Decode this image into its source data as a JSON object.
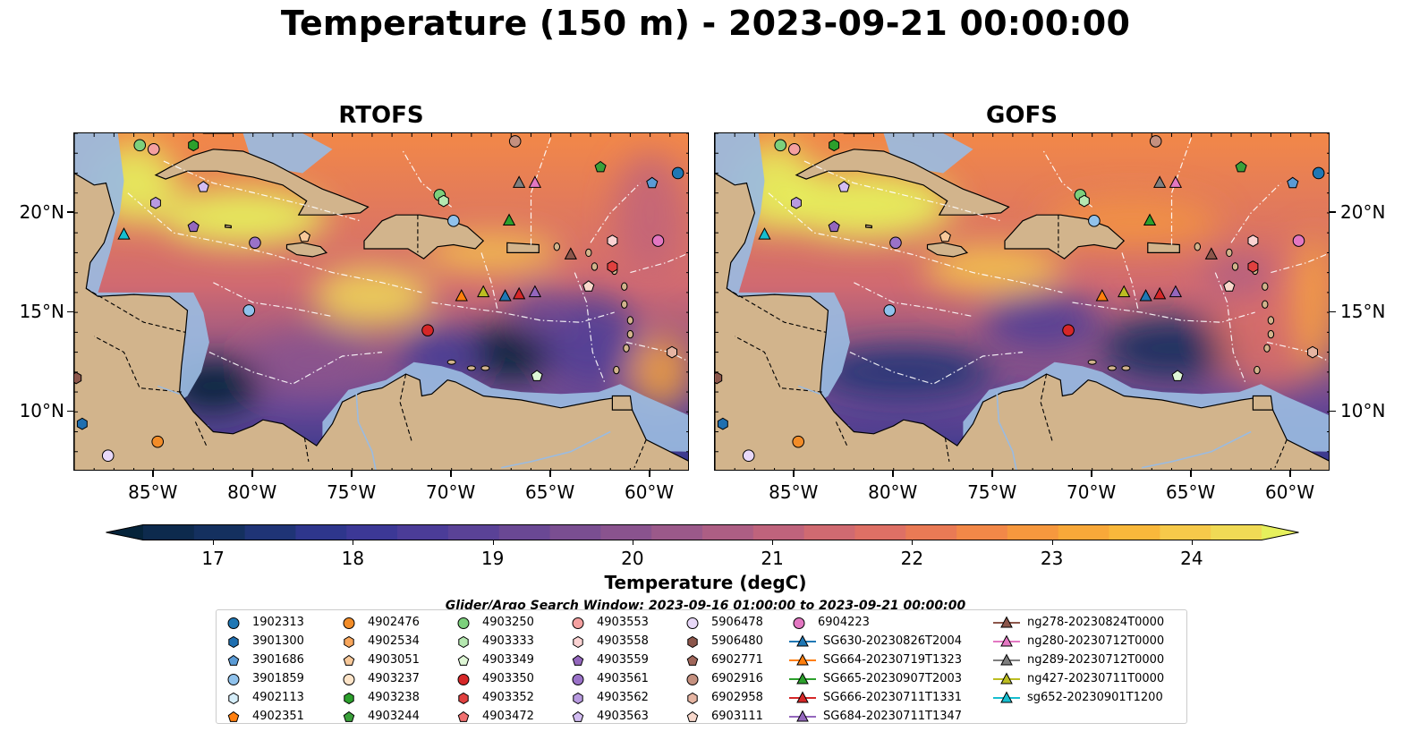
{
  "title": "Temperature (150 m) - 2023-09-21 00:00:00",
  "panels": [
    {
      "title": "RTOFS"
    },
    {
      "title": "GOFS"
    }
  ],
  "axes": {
    "lon_ticks": [
      "85°W",
      "80°W",
      "75°W",
      "70°W",
      "65°W",
      "60°W"
    ],
    "lat_ticks": [
      "20°N",
      "15°N",
      "10°N"
    ],
    "lon_range": [
      -89,
      -58
    ],
    "lat_range": [
      7,
      24
    ],
    "lon_values": [
      -85,
      -80,
      -75,
      -70,
      -65,
      -60
    ],
    "lat_values": [
      20,
      15,
      10
    ]
  },
  "colorbar": {
    "label": "Temperature (degC)",
    "ticks": [
      "17",
      "18",
      "19",
      "20",
      "21",
      "22",
      "23",
      "24"
    ],
    "range": [
      16.5,
      24.5
    ],
    "extend": "both",
    "colors": [
      "#05233a",
      "#0d2a4d",
      "#14305f",
      "#1f3476",
      "#2e368c",
      "#3c3896",
      "#4b3c98",
      "#5a4297",
      "#6a4894",
      "#7a4e91",
      "#8a538e",
      "#9b598a",
      "#ad5e84",
      "#bf637c",
      "#d06a71",
      "#de7065",
      "#e97a55",
      "#f28848",
      "#f6983e",
      "#f8a839",
      "#f9b83b",
      "#f6c94a",
      "#f0da55",
      "#e6f05c"
    ]
  },
  "search_window": "Glider/Argo Search Window: 2023-09-16 01:00:00 to 2023-09-21 00:00:00",
  "legend": {
    "columns": [
      [
        {
          "label": "1902313",
          "marker": "circle",
          "color": "#1f77b4"
        },
        {
          "label": "3901300",
          "marker": "hexagon",
          "color": "#1f6fb0"
        },
        {
          "label": "3901686",
          "marker": "pentagon",
          "color": "#5b9bd5"
        },
        {
          "label": "3901859",
          "marker": "circle",
          "color": "#90c2ec"
        },
        {
          "label": "4902113",
          "marker": "hexagon",
          "color": "#d6eefa"
        },
        {
          "label": "4902351",
          "marker": "pentagon",
          "color": "#ff7f0e"
        }
      ],
      [
        {
          "label": "4902476",
          "marker": "circle",
          "color": "#f28c28"
        },
        {
          "label": "4902534",
          "marker": "hexagon",
          "color": "#f8a65c"
        },
        {
          "label": "4903051",
          "marker": "pentagon",
          "color": "#f7c899"
        },
        {
          "label": "4903237",
          "marker": "circle",
          "color": "#fde4c8"
        },
        {
          "label": "4903238",
          "marker": "hexagon",
          "color": "#2ca02c"
        },
        {
          "label": "4903244",
          "marker": "pentagon",
          "color": "#3aa03a"
        }
      ],
      [
        {
          "label": "4903250",
          "marker": "circle",
          "color": "#7cd07c"
        },
        {
          "label": "4903333",
          "marker": "hexagon",
          "color": "#b5e8b0"
        },
        {
          "label": "4903349",
          "marker": "pentagon",
          "color": "#dff7d6"
        },
        {
          "label": "4903350",
          "marker": "circle",
          "color": "#d62728"
        },
        {
          "label": "4903352",
          "marker": "hexagon",
          "color": "#e0403f"
        },
        {
          "label": "4903472",
          "marker": "pentagon",
          "color": "#f07070"
        }
      ],
      [
        {
          "label": "4903553",
          "marker": "circle",
          "color": "#f4a0a0"
        },
        {
          "label": "4903558",
          "marker": "hexagon",
          "color": "#fbd3d3"
        },
        {
          "label": "4903559",
          "marker": "pentagon",
          "color": "#9467bd"
        },
        {
          "label": "4903561",
          "marker": "circle",
          "color": "#9a72c8"
        },
        {
          "label": "4903562",
          "marker": "hexagon",
          "color": "#b89ae0"
        },
        {
          "label": "4903563",
          "marker": "pentagon",
          "color": "#d3bdf2"
        }
      ],
      [
        {
          "label": "5906478",
          "marker": "circle",
          "color": "#e8d8f8"
        },
        {
          "label": "5906480",
          "marker": "hexagon",
          "color": "#8c564b"
        },
        {
          "label": "6902771",
          "marker": "pentagon",
          "color": "#a0665a"
        },
        {
          "label": "6902916",
          "marker": "circle",
          "color": "#c4907f"
        },
        {
          "label": "6902958",
          "marker": "hexagon",
          "color": "#e6b5a3"
        },
        {
          "label": "6903111",
          "marker": "pentagon",
          "color": "#f8d8cc"
        }
      ],
      [
        {
          "label": "6904223",
          "marker": "circle",
          "color": "#e377c2"
        },
        {
          "label": "SG630-20230826T2004",
          "marker": "triangle-line",
          "color": "#1f77b4"
        },
        {
          "label": "SG664-20230719T1323",
          "marker": "triangle-line",
          "color": "#ff7f0e"
        },
        {
          "label": "SG665-20230907T2003",
          "marker": "triangle-line",
          "color": "#2ca02c"
        },
        {
          "label": "SG666-20230711T1331",
          "marker": "triangle-line",
          "color": "#d62728"
        },
        {
          "label": "SG684-20230711T1347",
          "marker": "triangle-line",
          "color": "#9467bd"
        }
      ],
      [
        {
          "label": "ng278-20230824T0000",
          "marker": "triangle-line",
          "color": "#8c564b"
        },
        {
          "label": "ng280-20230712T0000",
          "marker": "triangle-line",
          "color": "#e377c2"
        },
        {
          "label": "ng289-20230712T0000",
          "marker": "triangle-line",
          "color": "#7f7f7f"
        },
        {
          "label": "ng427-20230711T0000",
          "marker": "triangle-line",
          "color": "#bcbd22"
        },
        {
          "label": "sg652-20230901T1200",
          "marker": "triangle-line",
          "color": "#17becf"
        }
      ]
    ]
  },
  "map_markers": [
    {
      "lon": -86.5,
      "lat": 18.9,
      "marker": "triangle",
      "color": "#17becf"
    },
    {
      "lon": -69.5,
      "lat": 15.8,
      "marker": "triangle",
      "color": "#ff7f0e"
    },
    {
      "lon": -68.4,
      "lat": 16.0,
      "marker": "triangle",
      "color": "#bcbd22"
    },
    {
      "lon": -67.3,
      "lat": 15.8,
      "marker": "triangle",
      "color": "#1f77b4"
    },
    {
      "lon": -66.6,
      "lat": 15.9,
      "marker": "triangle",
      "color": "#d62728"
    },
    {
      "lon": -65.8,
      "lat": 16.0,
      "marker": "triangle",
      "color": "#9467bd"
    },
    {
      "lon": -67.1,
      "lat": 19.6,
      "marker": "triangle",
      "color": "#2ca02c"
    },
    {
      "lon": -66.6,
      "lat": 21.5,
      "marker": "triangle",
      "color": "#7f7f7f"
    },
    {
      "lon": -65.8,
      "lat": 21.5,
      "marker": "triangle",
      "color": "#e377c2"
    },
    {
      "lon": -64.0,
      "lat": 17.9,
      "marker": "triangle",
      "color": "#8c564b"
    },
    {
      "lon": -85.7,
      "lat": 23.4,
      "marker": "circle",
      "color": "#7cd07c"
    },
    {
      "lon": -85.0,
      "lat": 23.2,
      "marker": "circle",
      "color": "#f4a0a0"
    },
    {
      "lon": -83.0,
      "lat": 23.4,
      "marker": "hexagon",
      "color": "#2ca02c"
    },
    {
      "lon": -66.8,
      "lat": 23.6,
      "marker": "circle",
      "color": "#c4907f"
    },
    {
      "lon": -62.5,
      "lat": 22.3,
      "marker": "pentagon",
      "color": "#3aa03a"
    },
    {
      "lon": -59.9,
      "lat": 21.5,
      "marker": "pentagon",
      "color": "#5b9bd5"
    },
    {
      "lon": -58.6,
      "lat": 22.0,
      "marker": "circle",
      "color": "#1f77b4"
    },
    {
      "lon": -84.9,
      "lat": 20.5,
      "marker": "hexagon",
      "color": "#b89ae0"
    },
    {
      "lon": -82.5,
      "lat": 21.3,
      "marker": "pentagon",
      "color": "#d3bdf2"
    },
    {
      "lon": -83.0,
      "lat": 19.3,
      "marker": "pentagon",
      "color": "#9467bd"
    },
    {
      "lon": -79.9,
      "lat": 18.5,
      "marker": "circle",
      "color": "#9a72c8"
    },
    {
      "lon": -77.4,
      "lat": 18.8,
      "marker": "pentagon",
      "color": "#f7c899"
    },
    {
      "lon": -70.6,
      "lat": 20.9,
      "marker": "circle",
      "color": "#7cd07c"
    },
    {
      "lon": -70.4,
      "lat": 20.6,
      "marker": "hexagon",
      "color": "#b5e8b0"
    },
    {
      "lon": -69.9,
      "lat": 19.6,
      "marker": "circle",
      "color": "#90c2ec"
    },
    {
      "lon": -61.9,
      "lat": 18.6,
      "marker": "hexagon",
      "color": "#fbd3d3"
    },
    {
      "lon": -59.6,
      "lat": 18.6,
      "marker": "circle",
      "color": "#e377c2"
    },
    {
      "lon": -61.9,
      "lat": 17.3,
      "marker": "hexagon",
      "color": "#e0403f"
    },
    {
      "lon": -63.1,
      "lat": 16.3,
      "marker": "pentagon",
      "color": "#f8d8cc"
    },
    {
      "lon": -80.2,
      "lat": 15.1,
      "marker": "circle",
      "color": "#90c2ec"
    },
    {
      "lon": -71.2,
      "lat": 14.1,
      "marker": "circle",
      "color": "#d62728"
    },
    {
      "lon": -58.9,
      "lat": 13.0,
      "marker": "hexagon",
      "color": "#e6b5a3"
    },
    {
      "lon": -65.7,
      "lat": 11.8,
      "marker": "pentagon",
      "color": "#dff7d6"
    },
    {
      "lon": -88.9,
      "lat": 11.7,
      "marker": "hexagon",
      "color": "#8c564b"
    },
    {
      "lon": -88.6,
      "lat": 9.4,
      "marker": "hexagon",
      "color": "#1f6fb0"
    },
    {
      "lon": -84.8,
      "lat": 8.5,
      "marker": "circle",
      "color": "#f28c28"
    },
    {
      "lon": -87.3,
      "lat": 7.8,
      "marker": "circle",
      "color": "#e8d8f8"
    }
  ]
}
